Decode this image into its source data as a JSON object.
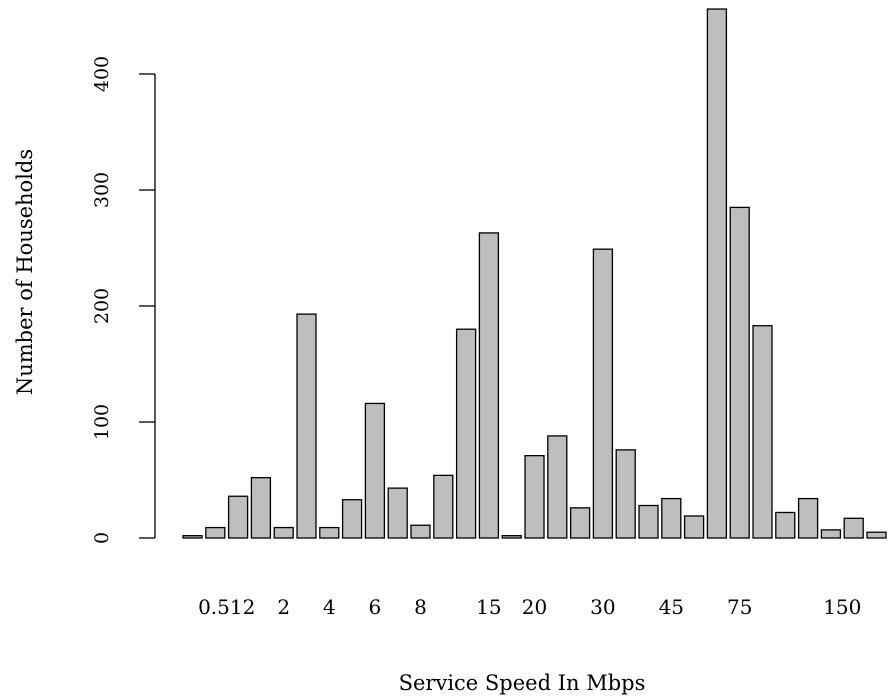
{
  "chart_data": {
    "type": "bar",
    "title": "",
    "xlabel": "Service Speed In Mbps",
    "ylabel": "Number of Households",
    "ylim": [
      0,
      460
    ],
    "yticks": [
      0,
      100,
      200,
      300,
      400
    ],
    "grid": false,
    "legend": null,
    "bar_fill": "#bebebe",
    "bar_stroke": "#000000",
    "x_tick_labels": [
      "0.512",
      "2",
      "4",
      "6",
      "8",
      "15",
      "20",
      "30",
      "45",
      "75",
      "150"
    ],
    "values": [
      2,
      9,
      36,
      52,
      9,
      193,
      9,
      33,
      116,
      43,
      11,
      54,
      180,
      263,
      2,
      71,
      88,
      26,
      249,
      76,
      28,
      34,
      19,
      456,
      285,
      183,
      22,
      34,
      7,
      17,
      5
    ]
  }
}
